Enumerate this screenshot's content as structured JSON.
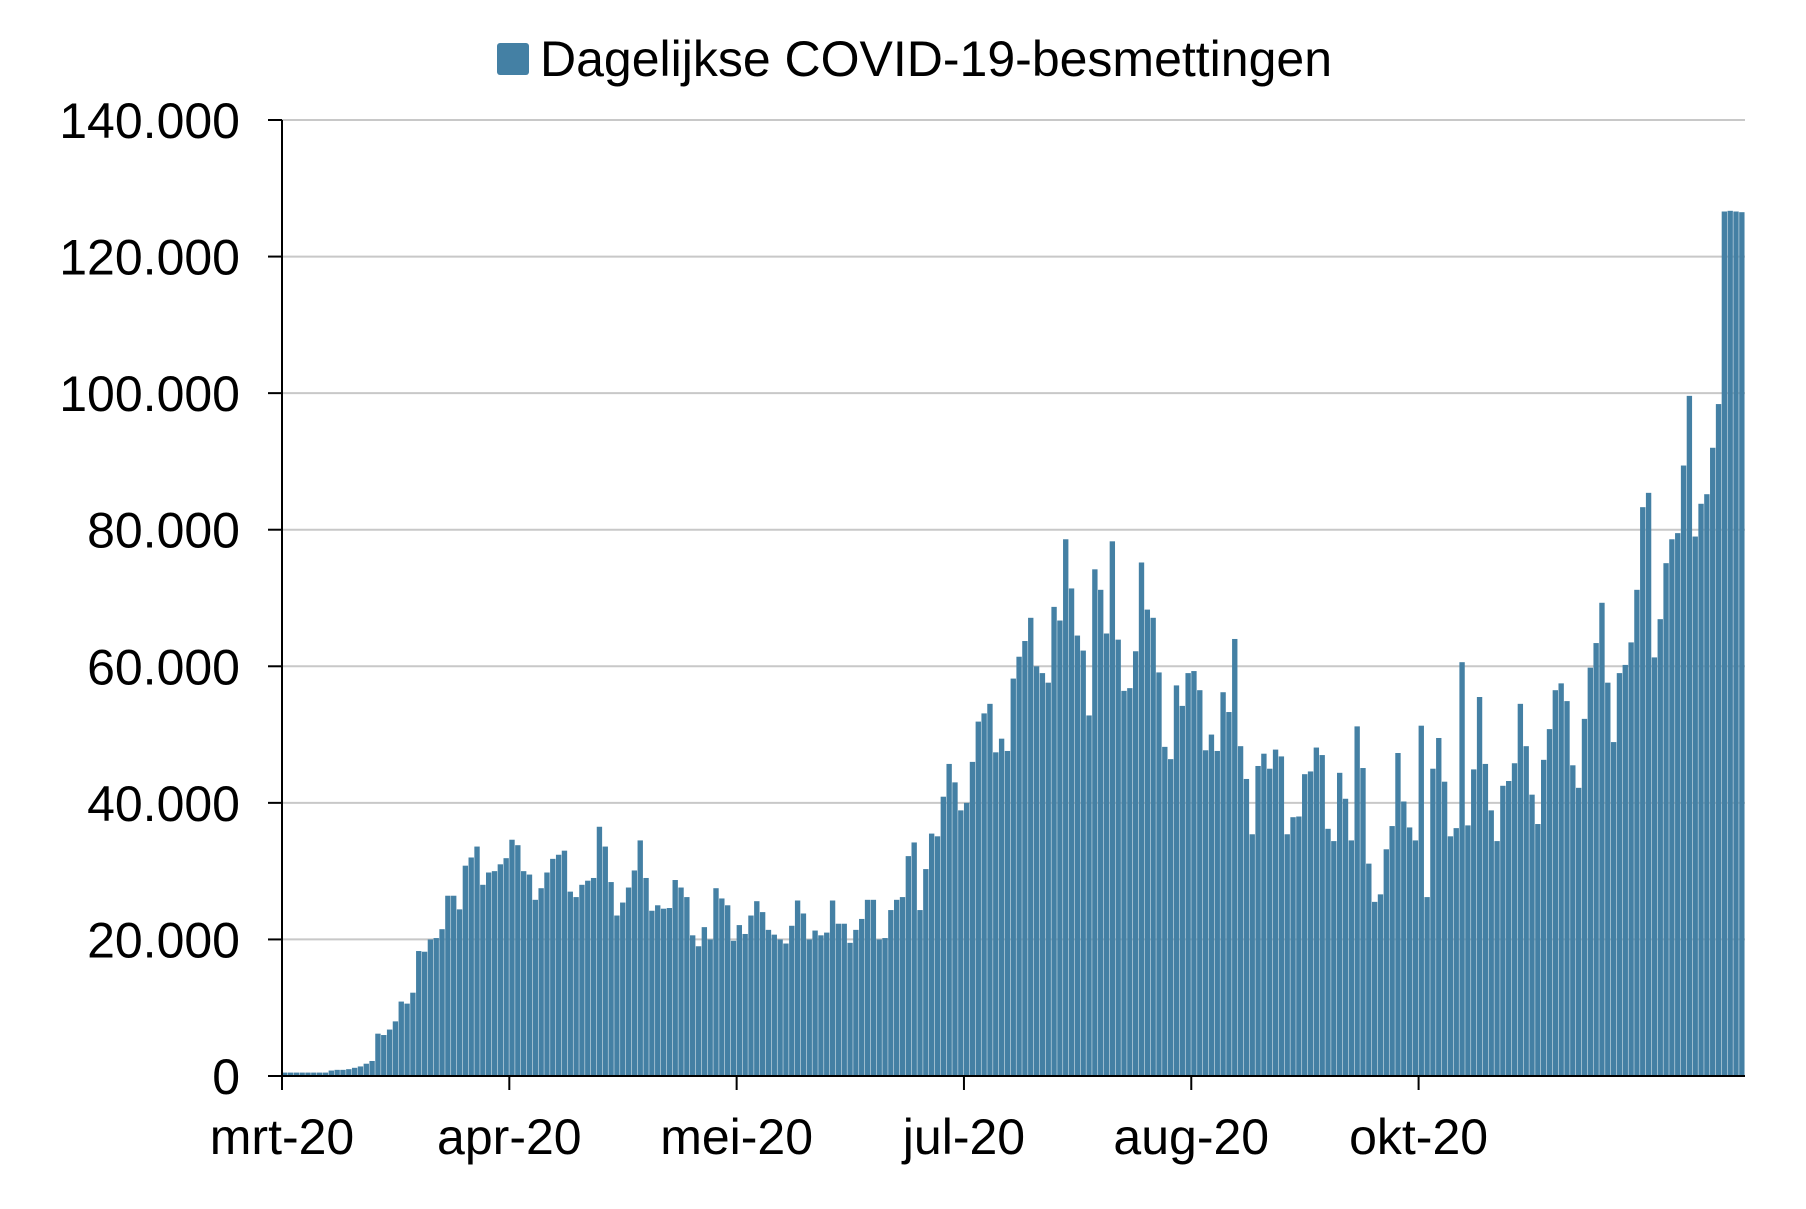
{
  "chart_data": {
    "type": "bar",
    "legend": {
      "label": "Dagelijkse COVID-19-besmettingen",
      "position": "top-center"
    },
    "series_color": "#4480a4",
    "grid": true,
    "ylim": [
      0,
      140000
    ],
    "y_ticks": [
      {
        "value": 0,
        "label": "0"
      },
      {
        "value": 20000,
        "label": "20.000"
      },
      {
        "value": 40000,
        "label": "40.000"
      },
      {
        "value": 60000,
        "label": "60.000"
      },
      {
        "value": 80000,
        "label": "80.000"
      },
      {
        "value": 100000,
        "label": "100.000"
      },
      {
        "value": 120000,
        "label": "120.000"
      },
      {
        "value": 140000,
        "label": "140.000"
      }
    ],
    "x_ticks": [
      {
        "index": 0,
        "label": "mrt-20"
      },
      {
        "index": 39,
        "label": "apr-20"
      },
      {
        "index": 78,
        "label": "mei-20"
      },
      {
        "index": 117,
        "label": "jul-20"
      },
      {
        "index": 156,
        "label": "aug-20"
      },
      {
        "index": 195,
        "label": "okt-20"
      }
    ],
    "values": [
      500,
      500,
      500,
      500,
      500,
      500,
      500,
      500,
      800,
      900,
      900,
      1000,
      1200,
      1400,
      1800,
      2200,
      6200,
      6000,
      6800,
      8000,
      10900,
      10600,
      12200,
      18300,
      18200,
      20000,
      20200,
      21500,
      26400,
      26400,
      24400,
      30800,
      32000,
      33600,
      28000,
      29800,
      30000,
      31000,
      31900,
      34600,
      33800,
      30000,
      29500,
      25800,
      27500,
      29800,
      31800,
      32400,
      33000,
      27000,
      26200,
      28000,
      28600,
      29000,
      36500,
      33600,
      28400,
      23500,
      25400,
      27600,
      30100,
      34500,
      29000,
      24200,
      25000,
      24500,
      24600,
      28700,
      27600,
      26200,
      20600,
      19000,
      21800,
      20000,
      27500,
      26000,
      25000,
      19800,
      22100,
      20800,
      23500,
      25600,
      24000,
      21400,
      20700,
      20000,
      19400,
      22000,
      25700,
      23800,
      20000,
      21300,
      20600,
      21000,
      25700,
      22300,
      22300,
      19500,
      21400,
      23000,
      25800,
      25800,
      20000,
      20200,
      24300,
      25800,
      26200,
      32200,
      34200,
      24300,
      30300,
      35500,
      35100,
      40900,
      45700,
      43000,
      38900,
      40000,
      46000,
      51900,
      53100,
      54500,
      47400,
      49400,
      47600,
      58200,
      61400,
      63700,
      67100,
      60000,
      59000,
      57600,
      68700,
      66700,
      78600,
      71400,
      64500,
      62300,
      52800,
      74200,
      71200,
      64800,
      78300,
      63900,
      56400,
      56800,
      62200,
      75200,
      68300,
      67100,
      59100,
      48200,
      46400,
      57200,
      54200,
      59000,
      59300,
      56500,
      47700,
      50000,
      47600,
      56200,
      53300,
      64000,
      48300,
      43500,
      35400,
      45400,
      47200,
      45000,
      47800,
      46800,
      35400,
      37900,
      38000,
      44200,
      44600,
      48100,
      47000,
      36200,
      34400,
      44400,
      40600,
      34500,
      51200,
      45100,
      31100,
      25500,
      26600,
      33200,
      36600,
      47300,
      40200,
      36400,
      34500,
      51300,
      26200,
      45000,
      49500,
      43100,
      35100,
      36300,
      60600,
      36700,
      44900,
      55500,
      45700,
      38900,
      34400,
      42500,
      43200,
      45800,
      54500,
      48300,
      41200,
      36900,
      46300,
      50800,
      56500,
      57500,
      54900,
      45500,
      42200,
      52300,
      59800,
      63400,
      69300,
      57600,
      48900,
      59000,
      60200,
      63500,
      71200,
      83300,
      85400,
      61300,
      66900,
      75100,
      78600,
      79500,
      89400,
      99600,
      79000,
      83800,
      85200,
      92000,
      98400,
      126600,
      126700,
      126600,
      126500
    ]
  }
}
